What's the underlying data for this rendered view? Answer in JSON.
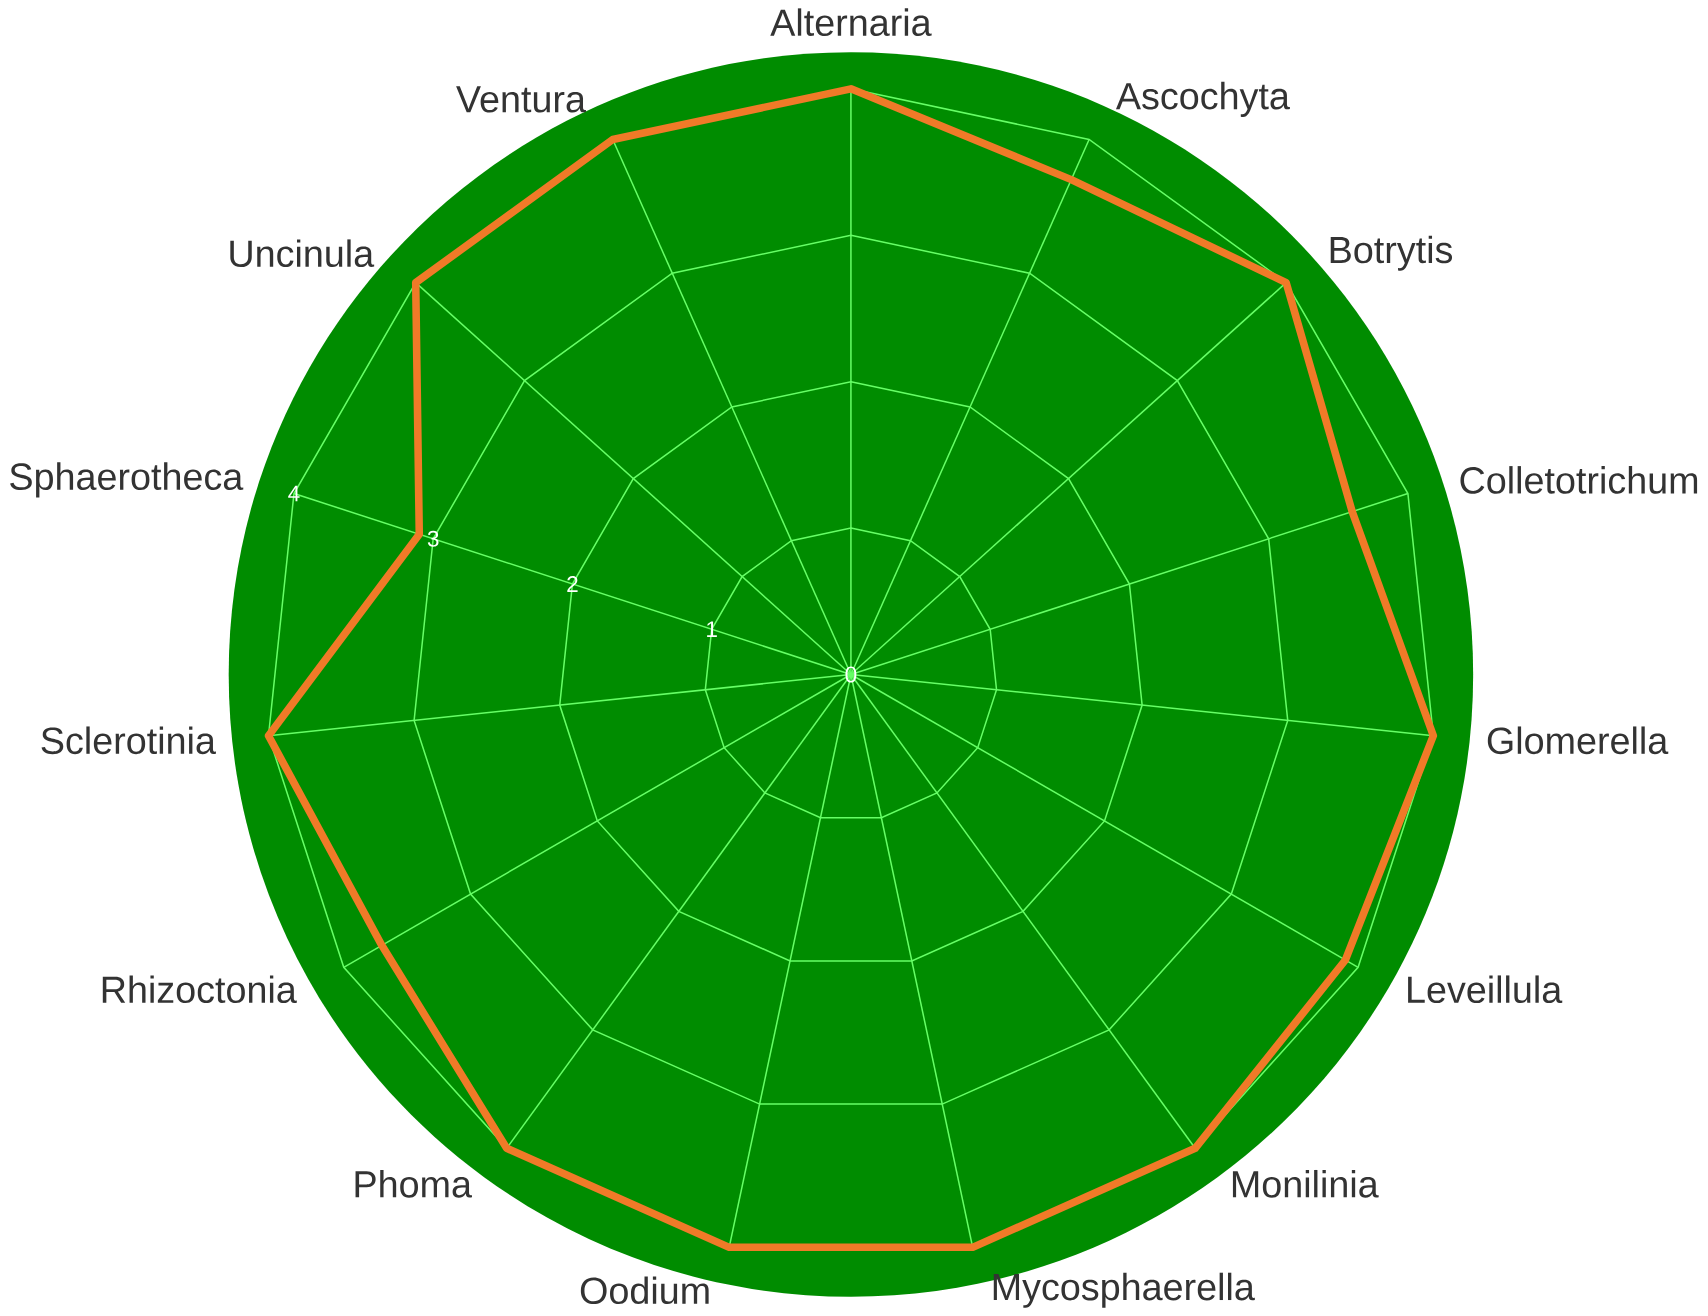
{
  "chart_data": {
    "type": "radar",
    "categories": [
      "Alternaria",
      "Ascochyta",
      "Botrytis",
      "Colletotrichum",
      "Glomerella",
      "Leveillula",
      "Monilinia",
      "Mycosphaerella",
      "Oodium",
      "Phoma",
      "Rhizoctonia",
      "Sclerotinia",
      "Sphaerotheca",
      "Uncinula",
      "Ventura"
    ],
    "series": [
      {
        "color": "#f07a28",
        "values": [
          4,
          3.7,
          4,
          3.6,
          4,
          3.9,
          4,
          4,
          4,
          4,
          3.7,
          4,
          3.1,
          4,
          4
        ]
      }
    ],
    "ylim": [
      0,
      4
    ],
    "yticks": [
      0,
      1,
      2,
      3,
      4
    ],
    "grid": true
  }
}
